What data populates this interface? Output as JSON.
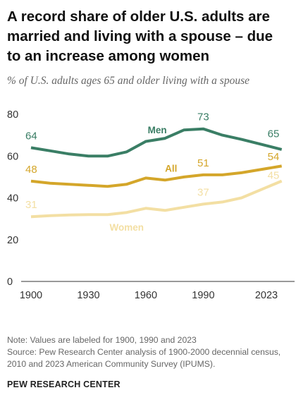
{
  "title": "A record share of older U.S. adults are married and living with a spouse – due to an increase among women",
  "subtitle": "% of U.S. adults ages 65 and older living with a spouse",
  "notes": [
    "Note: Values are labeled for 1900, 1990 and 2023",
    "Source: Pew Research Center analysis of 1900-2000 decennial census, 2010 and 2023 American Community Survey (IPUMS)."
  ],
  "brand": "PEW RESEARCH CENTER",
  "chart_data": {
    "type": "line",
    "title": "A record share of older U.S. adults are married and living with a spouse – due to an increase among women",
    "subtitle": "% of U.S. adults ages 65 and older living with a spouse",
    "xlabel": "",
    "ylabel": "",
    "ylim": [
      0,
      80
    ],
    "xlim": [
      1900,
      2023
    ],
    "yticks": [
      0,
      20,
      40,
      60,
      80
    ],
    "xticks": [
      1900,
      1930,
      1960,
      1990,
      2023
    ],
    "grid": false,
    "legend": "inline labels",
    "x": [
      1900,
      1910,
      1920,
      1930,
      1940,
      1950,
      1960,
      1970,
      1980,
      1990,
      2000,
      2010,
      2023
    ],
    "series": [
      {
        "name": "Men",
        "color": "#3a7e65",
        "values": [
          64,
          62.5,
          61,
          60,
          60,
          62,
          67,
          68.5,
          72.5,
          73,
          70,
          68,
          65
        ]
      },
      {
        "name": "All",
        "color": "#d4a62a",
        "values": [
          48,
          47,
          46.5,
          46,
          45.5,
          46.5,
          49.5,
          48.5,
          50,
          51,
          51,
          52,
          54
        ]
      },
      {
        "name": "Women",
        "color": "#f3dfa3",
        "values": [
          31,
          31.5,
          31.8,
          32,
          32,
          33,
          35,
          34,
          35.5,
          37,
          38,
          40,
          45
        ]
      }
    ],
    "value_labels": [
      {
        "series": "Men",
        "points": [
          {
            "x": 1900,
            "label": "64"
          },
          {
            "x": 1990,
            "label": "73"
          },
          {
            "x": 2023,
            "label": "65"
          }
        ]
      },
      {
        "series": "All",
        "points": [
          {
            "x": 1900,
            "label": "48"
          },
          {
            "x": 1990,
            "label": "51"
          },
          {
            "x": 2023,
            "label": "54"
          }
        ]
      },
      {
        "series": "Women",
        "points": [
          {
            "x": 1900,
            "label": "31"
          },
          {
            "x": 1990,
            "label": "37"
          },
          {
            "x": 2023,
            "label": "45"
          }
        ]
      }
    ]
  }
}
